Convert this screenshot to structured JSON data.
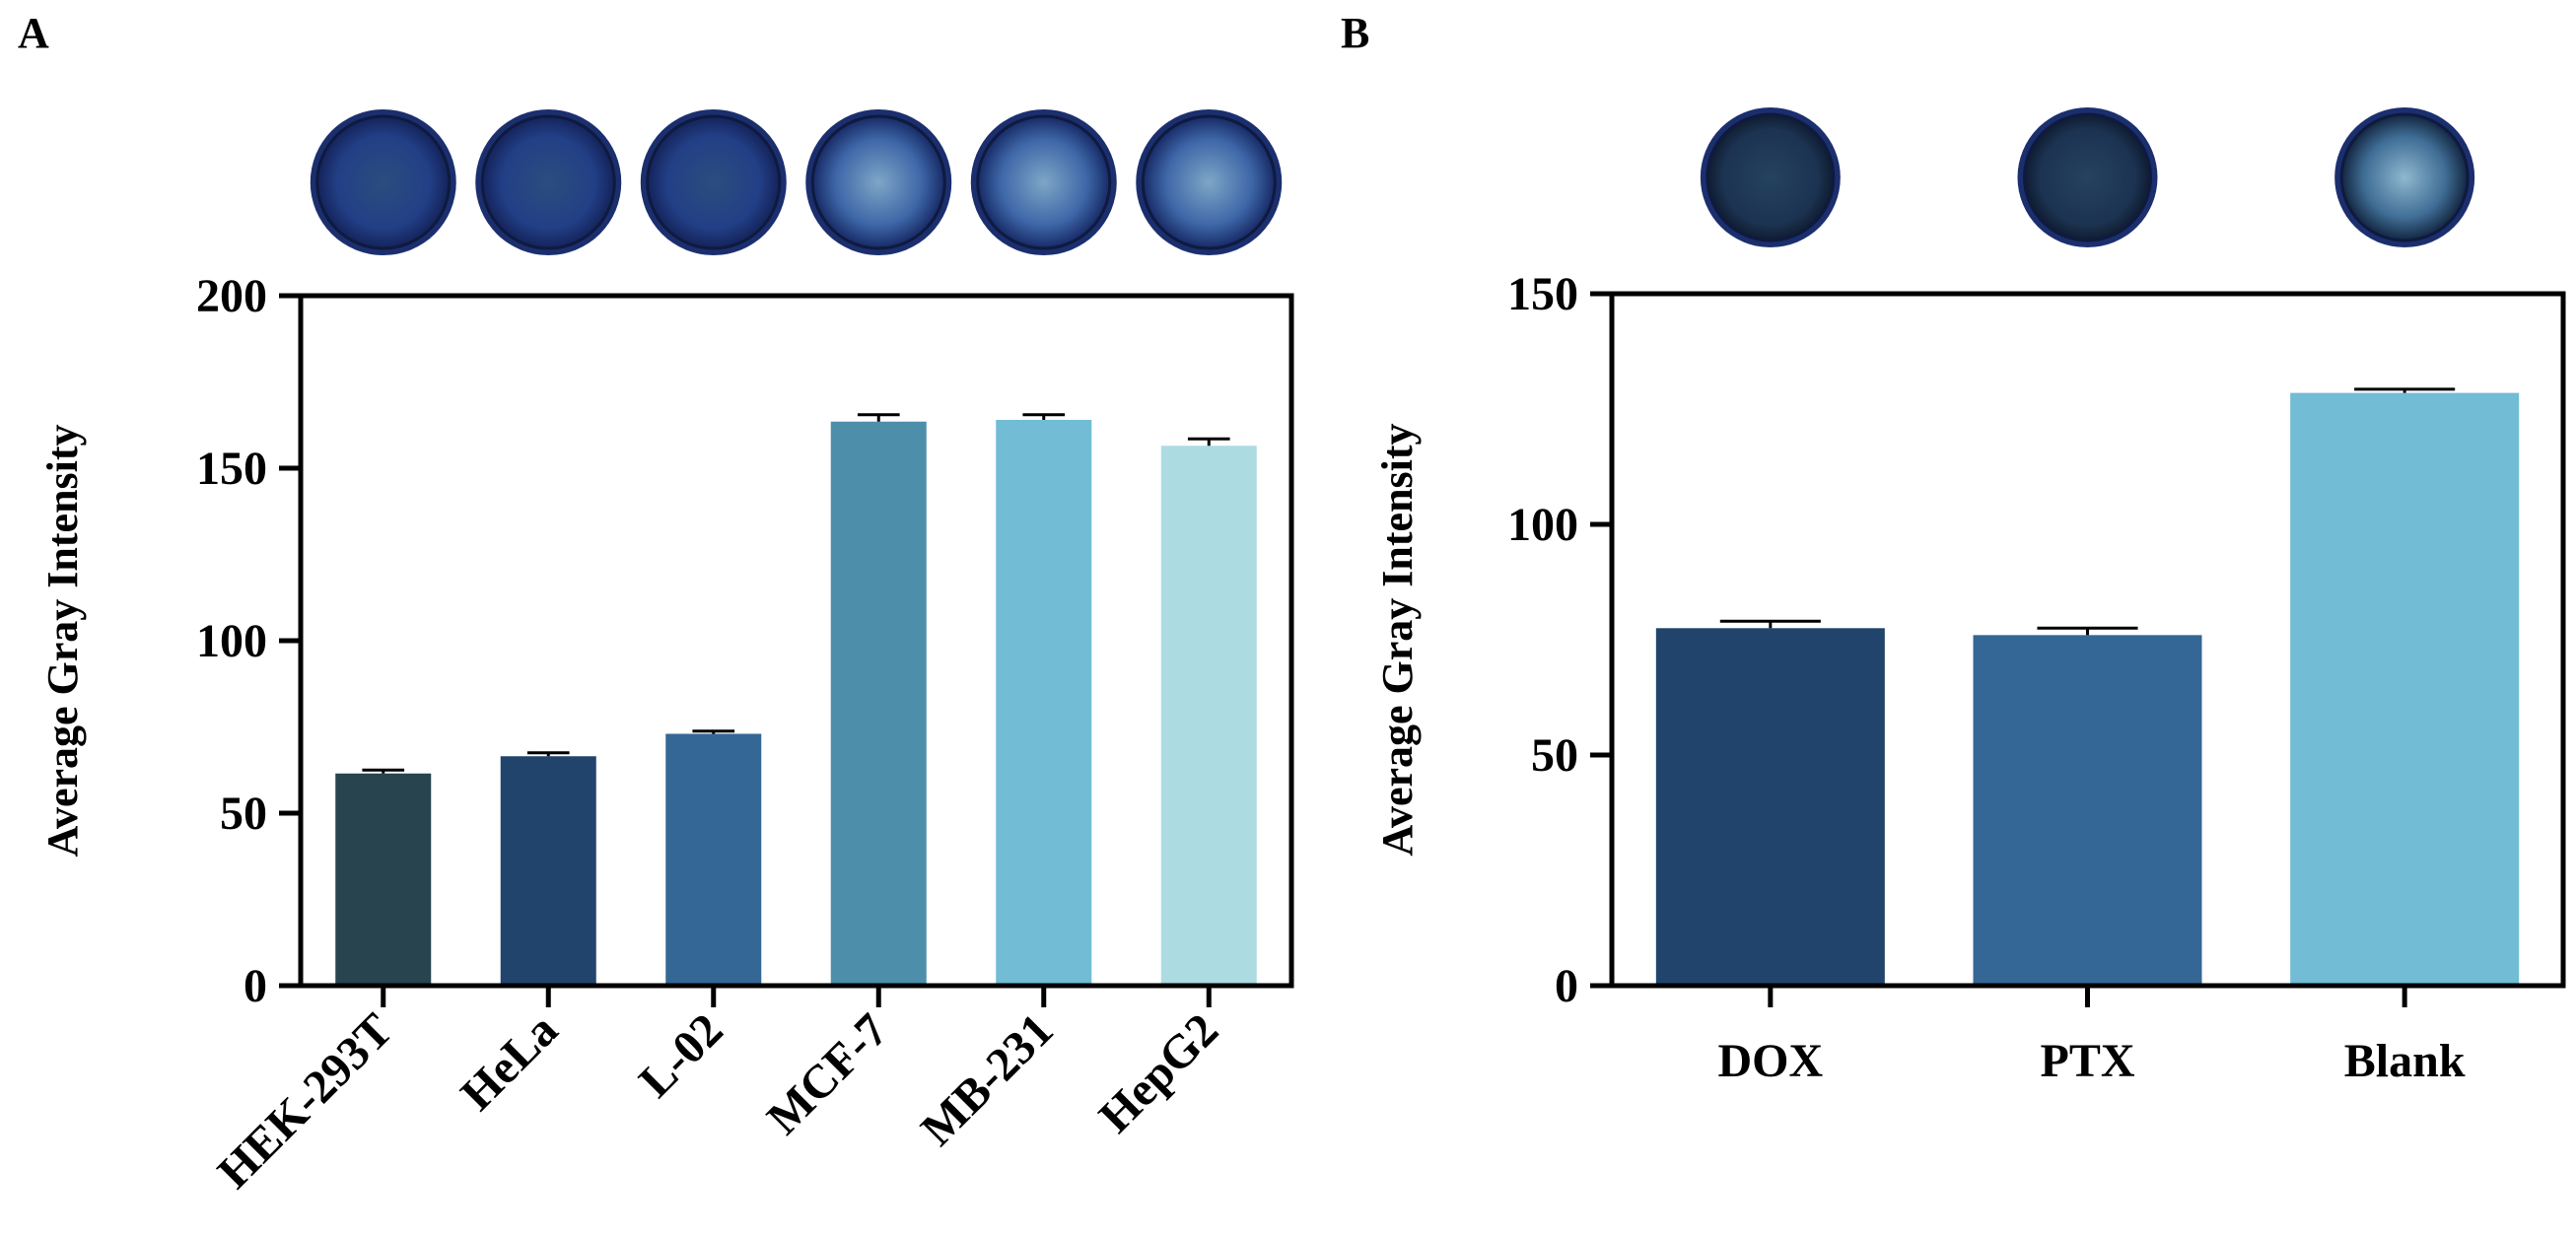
{
  "figure": {
    "panels": [
      "A",
      "B"
    ]
  },
  "chart_data": [
    {
      "type": "bar",
      "panel": "A",
      "title": "",
      "xlabel": "",
      "ylabel": "Average Gray Intensity",
      "ylim": [
        0,
        200
      ],
      "yticks": [
        0,
        50,
        100,
        150,
        200
      ],
      "categories": [
        "HEK-293T",
        "HeLa",
        "L-02",
        "MCF-7",
        "MB-231",
        "HepG2"
      ],
      "values": [
        61.5,
        66.5,
        73,
        163.5,
        164,
        156.5
      ],
      "errors": [
        1,
        1,
        0.8,
        2,
        1.5,
        2
      ],
      "colors": [
        "#28444f",
        "#21446c",
        "#346795",
        "#4d8fab",
        "#72bcd5",
        "#acdce2"
      ],
      "well_images": [
        "well-dark",
        "well-dark",
        "well-dark",
        "well-bright",
        "well-bright",
        "well-bright"
      ]
    },
    {
      "type": "bar",
      "panel": "B",
      "title": "",
      "xlabel": "",
      "ylabel": "Average Gray Intensity",
      "ylim": [
        0,
        150
      ],
      "yticks": [
        0,
        50,
        100,
        150
      ],
      "categories": [
        "DOX",
        "PTX",
        "Blank"
      ],
      "values": [
        77.5,
        76,
        128.5
      ],
      "errors": [
        1.5,
        1.5,
        0.8
      ],
      "colors": [
        "#21446c",
        "#346795",
        "#72bcd5"
      ],
      "well_images": [
        "well-dark",
        "well-dark",
        "well-bright"
      ]
    }
  ]
}
